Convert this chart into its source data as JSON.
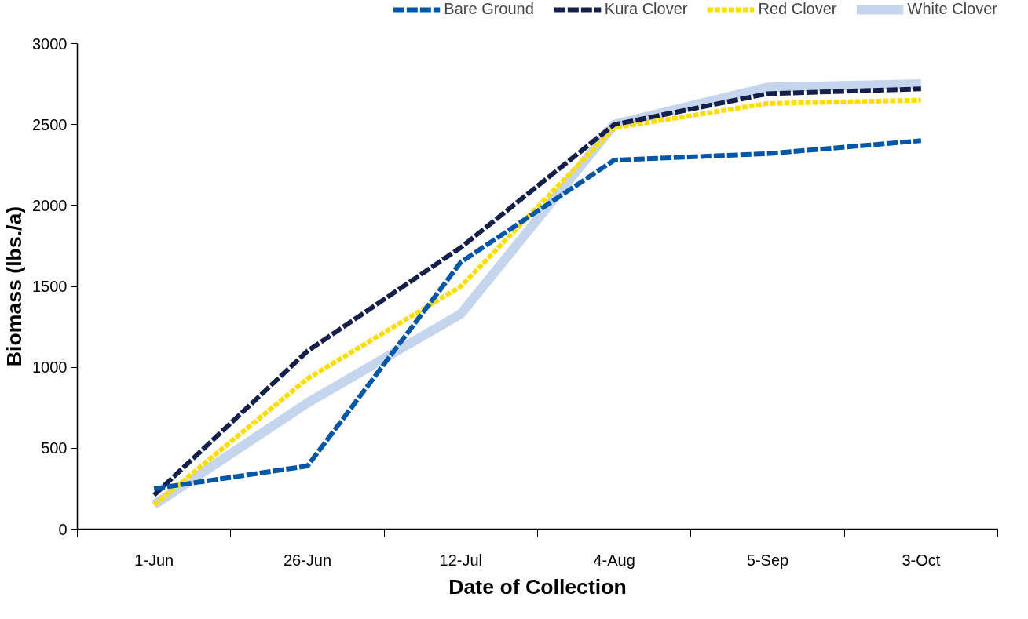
{
  "chart_data": {
    "type": "line",
    "xlabel": "Date of Collection",
    "ylabel": "Biomass (lbs./a)",
    "categories": [
      "1-Jun",
      "26-Jun",
      "12-Jul",
      "4-Aug",
      "5-Sep",
      "3-Oct"
    ],
    "series": [
      {
        "name": "Bare Ground",
        "color": "#0057a8",
        "line_style": "dashed",
        "values": [
          250,
          390,
          1650,
          2280,
          2320,
          2400
        ]
      },
      {
        "name": "Kura Clover",
        "color": "#14204a",
        "line_style": "dashed",
        "values": [
          210,
          1100,
          1740,
          2500,
          2690,
          2720
        ]
      },
      {
        "name": "Red Clover",
        "color": "#ffdd00",
        "line_style": "dotted",
        "values": [
          150,
          930,
          1500,
          2480,
          2630,
          2650
        ]
      },
      {
        "name": "White Clover",
        "color": "#c5d5ee",
        "line_style": "solid",
        "values": [
          150,
          780,
          1330,
          2500,
          2730,
          2750
        ]
      }
    ],
    "ylim": [
      0,
      3000
    ],
    "yticks": [
      0,
      500,
      1000,
      1500,
      2000,
      2500,
      3000
    ],
    "grid": false,
    "legend": "top",
    "marker": "none"
  }
}
